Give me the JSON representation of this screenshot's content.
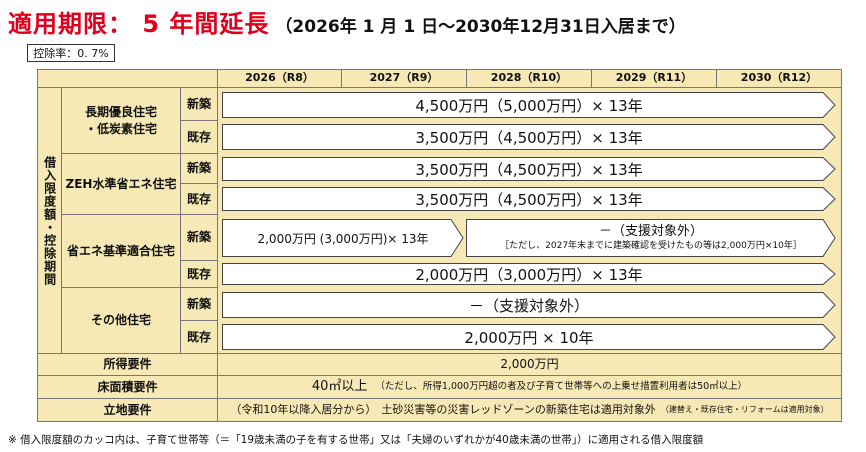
{
  "title": {
    "main": "適用期限： 5 年間延長",
    "sub": "（2026年 1 月 1 日～2030年12月31日入居まで）"
  },
  "rate": "控除率：0. 7%",
  "years": [
    "2026（R8）",
    "2027（R9）",
    "2028（R10）",
    "2029（R11）",
    "2030（R12）"
  ],
  "side_label": "借入限度額・控除期間",
  "categories": {
    "cat1": "長期優良住宅\n・低炭素住宅",
    "cat2": "ZEH水準省エネ住宅",
    "cat3": "省エネ基準適合住宅",
    "cat4": "その他住宅"
  },
  "type_new": "新築",
  "type_existing": "既存",
  "arrows": {
    "a1": "4,500万円（5,000万円）× 13年",
    "a2": "3,500万円（4,500万円）× 13年",
    "a3": "3,500万円（4,500万円）× 13年",
    "a4": "3,500万円（4,500万円）× 13年",
    "a5_left": "2,000万円 (3,000万円)× 13年",
    "a5_right_line1": "－（支援対象外）",
    "a5_right_line2": "［ただし、2027年末までに建築確認を受けたもの等は2,000万円×10年］",
    "a6": "2,000万円（3,000万円）× 13年",
    "a7": "－（支援対象外）",
    "a8": "2,000万円 × 10年"
  },
  "requirements": {
    "income_label": "所得要件",
    "income_value": "2,000万円",
    "floor_label": "床面積要件",
    "floor_value": "40㎡以上",
    "floor_note": "（ただし、所得1,000万円超の者及び子育て世帯等への上乗せ措置利用者は50㎡以上）",
    "location_label": "立地要件",
    "location_value_a": "（令和10年以降入居分から）",
    "location_value_b": "土砂災害等の災害レッドゾーンの新築住宅は適用対象外",
    "location_value_c": "（建替え・既存住宅・リフォームは適用対象）"
  },
  "footnote": "※ 借入限度額のカッコ内は、子育て世帯等（＝「19歳未満の子を有する世帯」又は「夫婦のいずれかが40歳未満の世帯」）に適用される借入限度額",
  "colors": {
    "accent": "#e0001b",
    "cell_fill": "#f7e9b5",
    "border": "#777777"
  }
}
